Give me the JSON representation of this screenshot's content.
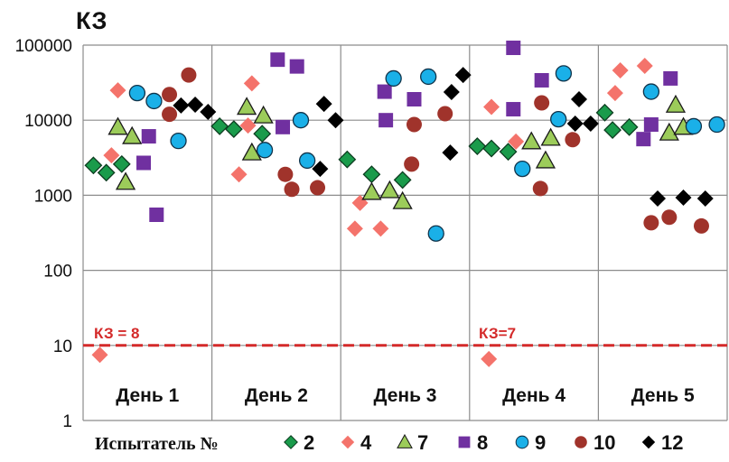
{
  "chart_data": {
    "type": "scatter",
    "title": "КЗ",
    "y_scale": "log",
    "ylim": [
      1,
      100000
    ],
    "y_ticks": [
      "1",
      "10",
      "100",
      "1000",
      "10000",
      "100000"
    ],
    "xlim": [
      0,
      5
    ],
    "categories": [
      "День 1",
      "День 2",
      "День 3",
      "День 4",
      "День 5"
    ],
    "grid": true,
    "legend_title": "Испытатель №",
    "legend_position": "bottom",
    "reference_line": {
      "y": 10,
      "color": "#d42a2a",
      "style": "dashed",
      "labels": [
        "КЗ = 8",
        "КЗ=7"
      ]
    },
    "series": [
      {
        "name": "2",
        "marker": "diamond",
        "color": "#1a9b4b",
        "outline": "#0d3d20",
        "x": [
          0.08,
          0.18,
          0.3,
          1.06,
          1.17,
          1.39,
          2.05,
          2.24,
          2.48,
          3.06,
          3.17,
          3.3,
          4.05,
          4.11,
          4.24
        ],
        "y": [
          2500,
          2000,
          2600,
          8300,
          7600,
          6600,
          3000,
          1900,
          1600,
          4500,
          4200,
          3800,
          12600,
          7400,
          8100
        ]
      },
      {
        "name": "4",
        "marker": "diamond",
        "color": "#f4736b",
        "outline": "none",
        "x": [
          0.27,
          0.22,
          0.13,
          1.31,
          1.28,
          1.21,
          2.15,
          2.11,
          2.31,
          3.17,
          3.36,
          3.15,
          4.13,
          4.17,
          4.36
        ],
        "y": [
          25000,
          3400,
          7.5,
          31000,
          8500,
          1900,
          790,
          360,
          360,
          15000,
          5200,
          6.6,
          23000,
          46000,
          53000
        ]
      },
      {
        "name": "7",
        "marker": "triangle",
        "color": "#9ccc5a",
        "outline": "#1a1a1a",
        "x": [
          0.27,
          0.38,
          0.33,
          1.27,
          1.4,
          1.31,
          2.24,
          2.38,
          2.48,
          3.48,
          3.63,
          3.59,
          4.6,
          4.55,
          4.66
        ],
        "y": [
          8100,
          6100,
          1500,
          15000,
          11500,
          3700,
          1100,
          1160,
          830,
          5200,
          5800,
          2900,
          16000,
          6800,
          8100
        ]
      },
      {
        "name": "8",
        "marker": "square",
        "color": "#7030a0",
        "outline": "none",
        "x": [
          0.51,
          0.47,
          0.57,
          1.51,
          1.66,
          1.55,
          2.34,
          2.57,
          2.35,
          3.34,
          3.56,
          3.34,
          4.56,
          4.41,
          4.35
        ],
        "y": [
          6100,
          2700,
          550,
          64000,
          52000,
          8100,
          24000,
          19000,
          10000,
          92000,
          34000,
          14000,
          36000,
          8750,
          5600
        ]
      },
      {
        "name": "9",
        "marker": "circle",
        "color": "#1ab0e8",
        "outline": "#10334a",
        "x": [
          0.42,
          0.55,
          0.74,
          1.69,
          1.41,
          1.74,
          2.41,
          2.68,
          2.74,
          3.73,
          3.69,
          3.41,
          4.41,
          4.74,
          4.92
        ],
        "y": [
          23000,
          18000,
          5300,
          10000,
          4000,
          2900,
          36000,
          38000,
          310,
          42000,
          10300,
          2250,
          24000,
          8300,
          8750
        ]
      },
      {
        "name": "10",
        "marker": "circle",
        "color": "#a0332b",
        "outline": "none",
        "x": [
          0.82,
          0.67,
          0.67,
          1.57,
          1.62,
          1.82,
          2.81,
          2.57,
          2.55,
          3.56,
          3.8,
          3.55,
          4.41,
          4.55,
          4.8
        ],
        "y": [
          40000,
          22000,
          12000,
          1900,
          1200,
          1260,
          12200,
          8750,
          2600,
          17000,
          5500,
          1230,
          430,
          510,
          390
        ]
      },
      {
        "name": "12",
        "marker": "diamond",
        "color": "#000000",
        "outline": "none",
        "x": [
          0.76,
          0.87,
          0.97,
          1.87,
          1.96,
          1.84,
          2.86,
          2.95,
          2.85,
          3.85,
          3.82,
          3.94,
          4.46,
          4.66,
          4.83
        ],
        "y": [
          15700,
          16100,
          12900,
          16500,
          10000,
          2250,
          23700,
          40000,
          3700,
          19000,
          9000,
          9000,
          905,
          930,
          905
        ]
      }
    ]
  }
}
